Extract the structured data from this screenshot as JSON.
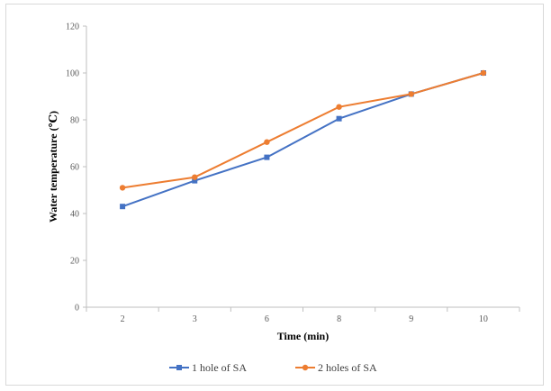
{
  "chart_data": {
    "type": "line",
    "categories": [
      "2",
      "3",
      "6",
      "8",
      "9",
      "10"
    ],
    "xlabel": "Time (min)",
    "ylabel": "Water temperature (℃)",
    "ylim": [
      0,
      120
    ],
    "yticks": [
      0,
      20,
      40,
      60,
      80,
      100,
      120
    ],
    "grid": false,
    "legend_position": "bottom",
    "series": [
      {
        "name": "1 hole of SA",
        "values": [
          43,
          54,
          64,
          80.5,
          91,
          100
        ],
        "color": "#4472c4",
        "marker": "square"
      },
      {
        "name": "2 holes of SA",
        "values": [
          51,
          55.5,
          70.5,
          85.5,
          91,
          100
        ],
        "color": "#ed7d31",
        "marker": "circle"
      }
    ]
  }
}
